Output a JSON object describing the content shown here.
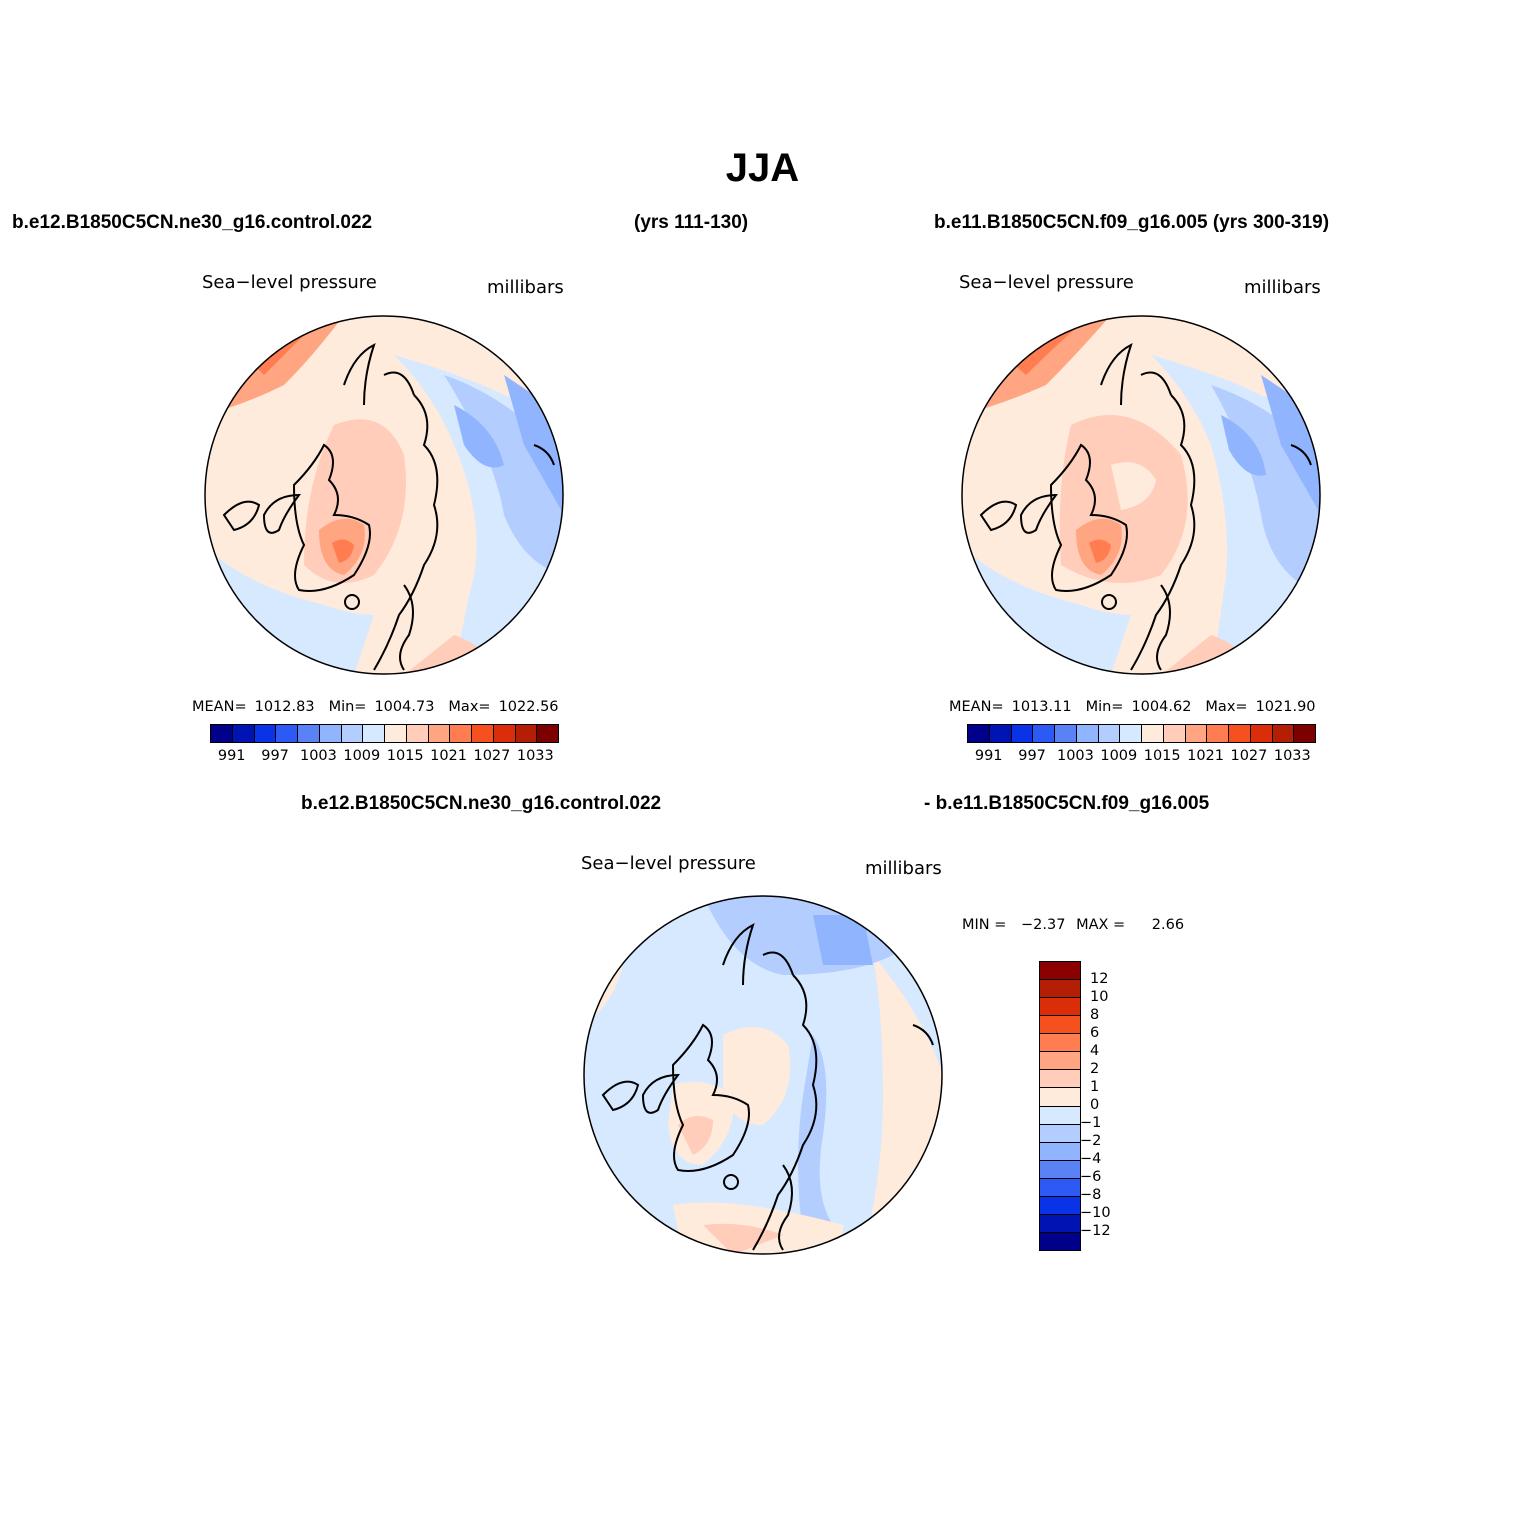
{
  "title": "JJA",
  "panels": [
    {
      "case_label": "b.e12.B1850C5CN.ne30_g16.control.022",
      "years": "(yrs 111-130)",
      "variable": "Sea−level pressure",
      "units": "millibars",
      "stats": [
        {
          "label": "MEAN=",
          "value": "1012.83"
        },
        {
          "label": "Min=",
          "value": "1004.73"
        },
        {
          "label": "Max=",
          "value": "1022.56"
        }
      ],
      "dominant_level": "1009-1015 (north Atlantic/Eurasia) to 1015-1021 (Arctic/Greenland)"
    },
    {
      "case_label": "b.e11.B1850C5CN.f09_g16.005 (yrs 300-319)",
      "variable": "Sea−level pressure",
      "units": "millibars",
      "stats": [
        {
          "label": "MEAN=",
          "value": "1013.11"
        },
        {
          "label": "Min=",
          "value": "1004.62"
        },
        {
          "label": "Max=",
          "value": "1021.90"
        }
      ]
    },
    {
      "case_label_left": "b.e12.B1850C5CN.ne30_g16.control.022",
      "case_label_right": "- b.e11.B1850C5CN.f09_g16.005",
      "variable": "Sea−level pressure",
      "units": "millibars",
      "min_label": "MIN =",
      "min_value": "−2.37",
      "max_label": "MAX =",
      "max_value": "2.66"
    }
  ],
  "colorbar_top": {
    "colors": [
      "#00008b",
      "#0014b4",
      "#0a32e6",
      "#2d5af5",
      "#5a82f5",
      "#91b4ff",
      "#b4cdff",
      "#d7e9ff",
      "#ffebdc",
      "#ffcdb9",
      "#ffa582",
      "#ff7d50",
      "#f5501e",
      "#dc2d0a",
      "#b41e05",
      "#7d0000"
    ],
    "labels": [
      "991",
      "997",
      "1003",
      "1009",
      "1015",
      "1021",
      "1027",
      "1033"
    ]
  },
  "colorbar_diff": {
    "colors_top_to_bottom": [
      "#8b0000",
      "#b41e05",
      "#dc2d0a",
      "#f5501e",
      "#ff7d50",
      "#ffa582",
      "#ffcdb9",
      "#ffebdc",
      "#d7e9ff",
      "#b4cdff",
      "#91b4ff",
      "#5a82f5",
      "#2d5af5",
      "#0a32e6",
      "#0014b4",
      "#00008b"
    ],
    "labels": [
      "12",
      "10",
      "8",
      "6",
      "4",
      "2",
      "1",
      "0",
      "−1",
      "−2",
      "−4",
      "−6",
      "−8",
      "−10",
      "−12"
    ]
  }
}
